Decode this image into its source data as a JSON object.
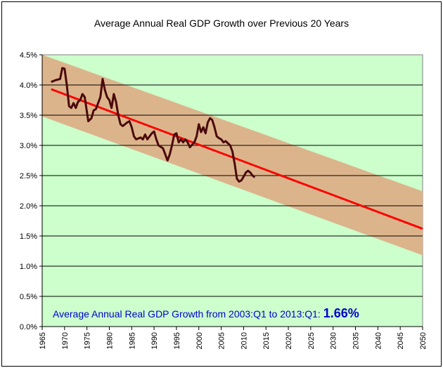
{
  "chart_data": {
    "type": "line",
    "title": "Average Annual Real GDP Growth over Previous 20 Years",
    "xlabel": "",
    "ylabel": "",
    "xlim": [
      1965,
      2050
    ],
    "ylim": [
      0,
      4.5
    ],
    "x_ticks": [
      "1965",
      "1970",
      "1975",
      "1980",
      "1985",
      "1990",
      "1995",
      "2000",
      "2005",
      "2010",
      "2015",
      "2020",
      "2025",
      "2030",
      "2035",
      "2040",
      "2045",
      "2050"
    ],
    "y_ticks": [
      "0.0%",
      "0.5%",
      "1.0%",
      "1.5%",
      "2.0%",
      "2.5%",
      "3.0%",
      "3.5%",
      "4.0%",
      "4.5%"
    ],
    "grid": "horizontal",
    "plot_background": "#ccffcc",
    "series": [
      {
        "type": "line",
        "color": "#4a0a0a",
        "points": [
          [
            1967,
            4.05
          ],
          [
            1968,
            4.08
          ],
          [
            1969,
            4.1
          ],
          [
            1969.5,
            4.28
          ],
          [
            1970,
            4.27
          ],
          [
            1970.5,
            4.0
          ],
          [
            1971,
            3.65
          ],
          [
            1971.5,
            3.62
          ],
          [
            1972,
            3.7
          ],
          [
            1972.5,
            3.62
          ],
          [
            1973,
            3.72
          ],
          [
            1973.5,
            3.75
          ],
          [
            1974,
            3.85
          ],
          [
            1974.5,
            3.8
          ],
          [
            1975,
            3.55
          ],
          [
            1975.3,
            3.4
          ],
          [
            1976,
            3.45
          ],
          [
            1976.5,
            3.58
          ],
          [
            1977,
            3.6
          ],
          [
            1978,
            3.8
          ],
          [
            1978.5,
            4.1
          ],
          [
            1979,
            3.92
          ],
          [
            1979.5,
            3.8
          ],
          [
            1980,
            3.75
          ],
          [
            1980.5,
            3.62
          ],
          [
            1981,
            3.85
          ],
          [
            1981.5,
            3.72
          ],
          [
            1982,
            3.5
          ],
          [
            1982.5,
            3.35
          ],
          [
            1983,
            3.32
          ],
          [
            1983.5,
            3.35
          ],
          [
            1984,
            3.38
          ],
          [
            1984.5,
            3.4
          ],
          [
            1985,
            3.3
          ],
          [
            1985.5,
            3.15
          ],
          [
            1986,
            3.1
          ],
          [
            1987,
            3.13
          ],
          [
            1987.5,
            3.1
          ],
          [
            1988,
            3.18
          ],
          [
            1988.5,
            3.1
          ],
          [
            1989,
            3.15
          ],
          [
            1989.5,
            3.2
          ],
          [
            1990,
            3.23
          ],
          [
            1990.5,
            3.1
          ],
          [
            1991,
            3.0
          ],
          [
            1992,
            2.95
          ],
          [
            1992.5,
            2.85
          ],
          [
            1993,
            2.75
          ],
          [
            1993.5,
            2.85
          ],
          [
            1994,
            3.0
          ],
          [
            1994.5,
            3.18
          ],
          [
            1995,
            3.2
          ],
          [
            1995.5,
            3.05
          ],
          [
            1996,
            3.1
          ],
          [
            1996.5,
            3.05
          ],
          [
            1997,
            3.1
          ],
          [
            1997.5,
            3.05
          ],
          [
            1998,
            2.97
          ],
          [
            1999,
            3.05
          ],
          [
            1999.5,
            3.15
          ],
          [
            2000,
            3.35
          ],
          [
            2000.5,
            3.22
          ],
          [
            2001,
            3.3
          ],
          [
            2001.5,
            3.2
          ],
          [
            2002,
            3.38
          ],
          [
            2002.5,
            3.45
          ],
          [
            2003,
            3.42
          ],
          [
            2003.5,
            3.3
          ],
          [
            2004,
            3.15
          ],
          [
            2004.5,
            3.12
          ],
          [
            2005,
            3.1
          ],
          [
            2005.5,
            3.05
          ],
          [
            2006,
            3.07
          ],
          [
            2007,
            3.0
          ],
          [
            2007.5,
            2.9
          ],
          [
            2008,
            2.7
          ],
          [
            2008.5,
            2.45
          ],
          [
            2009,
            2.4
          ],
          [
            2009.5,
            2.42
          ],
          [
            2010,
            2.48
          ],
          [
            2010.5,
            2.55
          ],
          [
            2011,
            2.58
          ],
          [
            2011.5,
            2.55
          ],
          [
            2012,
            2.5
          ],
          [
            2012.5,
            2.47
          ]
        ]
      },
      {
        "type": "trend",
        "color": "#ff0000",
        "points": [
          [
            1967,
            3.93
          ],
          [
            2050,
            1.62
          ]
        ]
      },
      {
        "type": "band",
        "color": "#dcb48c",
        "upper": [
          [
            1965,
            4.5
          ],
          [
            2050,
            2.24
          ]
        ],
        "lower": [
          [
            1965,
            3.48
          ],
          [
            2050,
            1.18
          ]
        ]
      }
    ],
    "annotation": {
      "text": "Average Annual Real GDP Growth from 2003:Q1 to 2013:Q1: ",
      "value": "1.66%",
      "color": "#0000cc"
    }
  }
}
